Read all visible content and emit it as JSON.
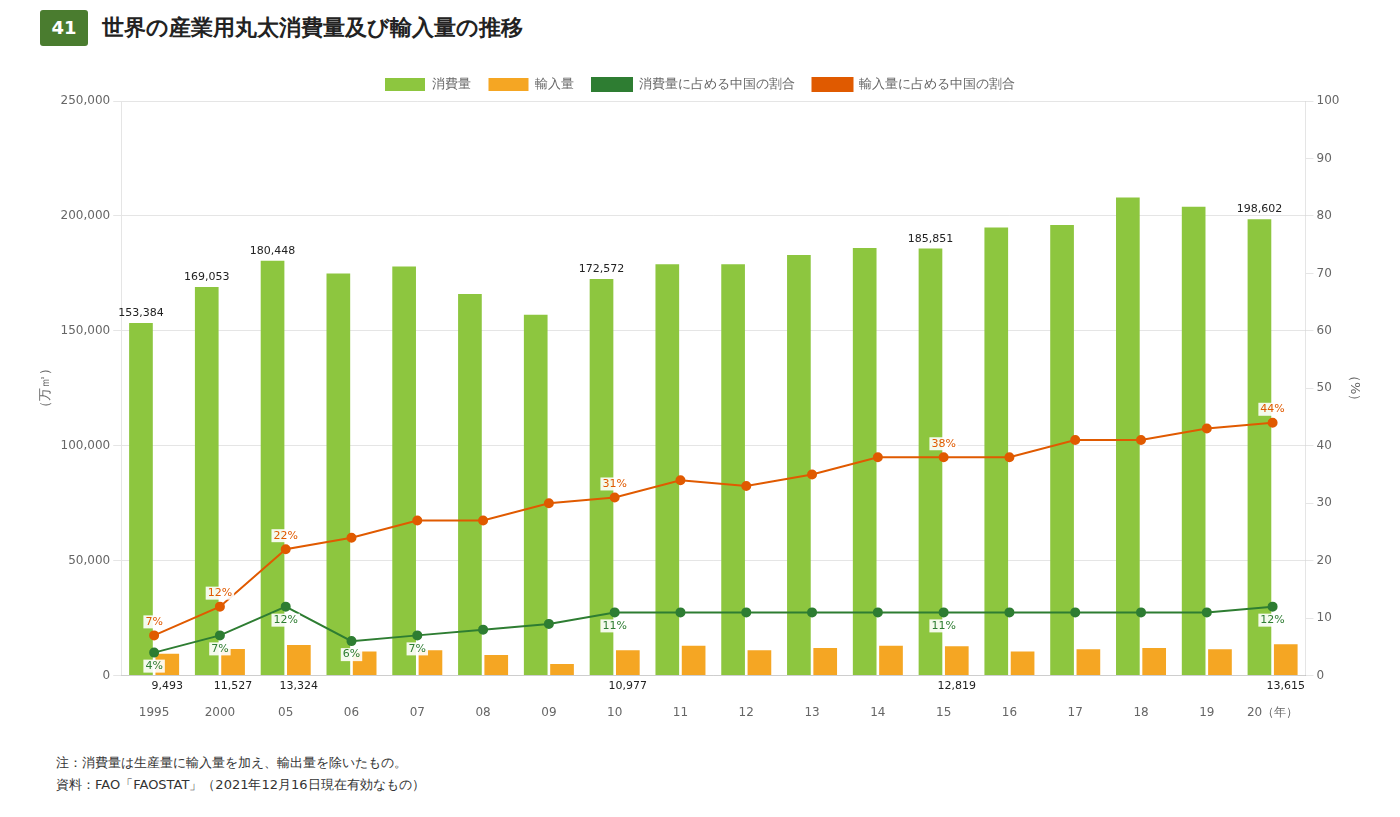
{
  "chart_data": {
    "type": "bar",
    "title": "世界の産業用丸太消費量及び輸入量の推移",
    "annotations": [
      {
        "text": "41",
        "color": "#4a7c2f"
      },
      {
        "text": "注：消費量は生産量に輸入量を加え、輸出量を除いたもの。"
      },
      {
        "text": "資料：FAO「FAOSTAT」（2021年12月16日現在有効なもの）"
      }
    ],
    "ylabel": "（万㎥）",
    "y2label": "（%）",
    "categories": [
      "1995",
      "2000",
      "05",
      "06",
      "07",
      "08",
      "09",
      "10",
      "11",
      "12",
      "13",
      "14",
      "15",
      "16",
      "17",
      "18",
      "19",
      "20（年）"
    ],
    "series": [
      {
        "name": "消費量",
        "type": "bar",
        "color": "#8dc63f",
        "values": [
          153384,
          169053,
          180448,
          175000,
          178000,
          166000,
          157000,
          172572,
          179000,
          179000,
          183000,
          186000,
          185851,
          195000,
          196000,
          208000,
          204000,
          198602
        ],
        "data_labels": true,
        "value_labels": [
          "153,384",
          "169,053",
          "180,448",
          null,
          null,
          null,
          null,
          "172,572",
          null,
          null,
          null,
          null,
          "185,851",
          null,
          null,
          null,
          null,
          "198,602"
        ]
      },
      {
        "name": "輸入量",
        "type": "bar",
        "color": "#f5a623",
        "values": [
          9493,
          11527,
          13324,
          10500,
          11000,
          9000,
          5000,
          10977,
          13000,
          11000,
          12000,
          13000,
          12819,
          10500,
          11500,
          12000,
          11500,
          13615
        ],
        "data_labels": true,
        "value_labels": [
          "9,493",
          "11,527",
          "13,324",
          null,
          null,
          null,
          null,
          "10,977",
          null,
          null,
          null,
          null,
          "12,819",
          null,
          null,
          null,
          null,
          "13,615"
        ]
      },
      {
        "name": "消費量に占める中国の割合",
        "type": "line",
        "axis": "y2",
        "color": "#2e7d32",
        "marker": "circle",
        "line_style": "solid",
        "values": [
          4,
          7,
          12,
          6,
          7,
          8,
          9,
          11,
          11,
          11,
          11,
          11,
          11,
          11,
          11,
          11,
          11,
          12
        ],
        "data_labels": true,
        "value_labels": [
          "4%",
          "7%",
          "12%",
          "6%",
          "7%",
          null,
          null,
          "11%",
          null,
          null,
          null,
          null,
          "11%",
          null,
          null,
          null,
          null,
          "12%"
        ]
      },
      {
        "name": "輸入量に占める中国の割合",
        "type": "line",
        "axis": "y2",
        "color": "#e05a00",
        "marker": "circle",
        "line_style": "solid",
        "values": [
          7,
          12,
          22,
          24,
          27,
          27,
          30,
          31,
          34,
          33,
          35,
          38,
          38,
          38,
          41,
          41,
          43,
          44
        ],
        "data_labels": true,
        "value_labels": [
          "7%",
          "12%",
          "22%",
          null,
          null,
          null,
          null,
          "31%",
          null,
          null,
          null,
          null,
          "38%",
          null,
          null,
          null,
          null,
          "44%"
        ]
      }
    ],
    "ylim": [
      0,
      250000
    ],
    "yticks": [
      0,
      {
        "value": 50000,
        "label": "50,000"
      },
      {
        "value": 100000,
        "label": "100,000"
      },
      {
        "value": 150000,
        "label": "150,000"
      },
      {
        "value": 200000,
        "label": "200,000"
      },
      {
        "value": 250000,
        "label": "250,000"
      }
    ],
    "y2lim": [
      0,
      100
    ],
    "y2ticks": [
      0,
      10,
      20,
      30,
      40,
      50,
      60,
      70,
      80,
      90,
      100
    ],
    "grid": true,
    "legend": "top"
  }
}
